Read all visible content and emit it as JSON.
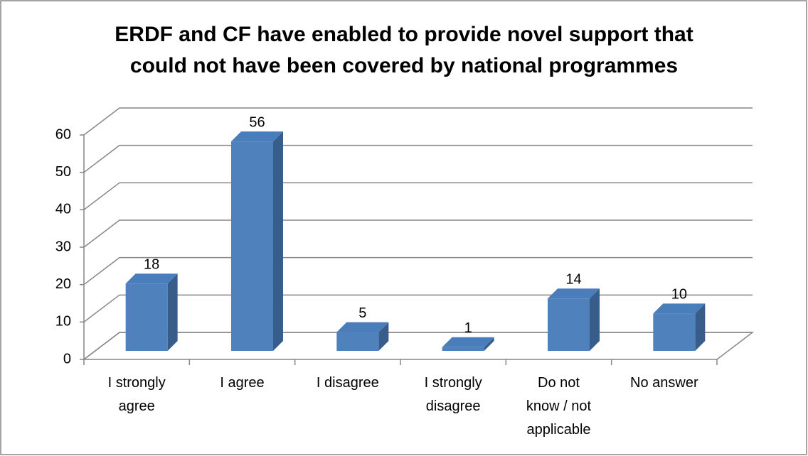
{
  "chart_data": {
    "type": "bar3d",
    "title": "ERDF and CF have enabled to provide novel support that could not have been covered by national programmes",
    "categories": [
      "I strongly agree",
      "I agree",
      "I disagree",
      "I strongly disagree",
      "Do not know / not applicable",
      "No answer"
    ],
    "values": [
      18,
      56,
      5,
      1,
      14,
      10
    ],
    "color": "#4f81bd",
    "ylim": [
      0,
      60
    ],
    "yticks": [
      0,
      10,
      20,
      30,
      40,
      50,
      60
    ],
    "grid": true
  }
}
